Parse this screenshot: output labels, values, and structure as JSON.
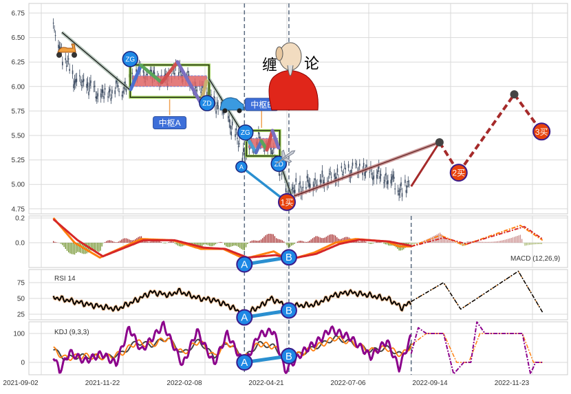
{
  "chart_data": {
    "type": "candlestick-with-indicators",
    "x_tick_labels": [
      "2021-09-02",
      "2021-11-22",
      "2022-02-08",
      "2022-04-21",
      "2022-07-06",
      "2022-09-14",
      "2022-11-23"
    ],
    "price": {
      "y_ticks": [
        "4.75",
        "5.00",
        "5.25",
        "5.50",
        "5.75",
        "6.00",
        "6.25",
        "6.50",
        "6.75"
      ],
      "ylim": [
        4.7,
        6.85
      ],
      "close": [
        [
          "2021-09-14",
          6.6
        ],
        [
          "2021-09-22",
          6.35
        ],
        [
          "2021-09-29",
          6.2
        ],
        [
          "2021-10-06",
          6.05
        ],
        [
          "2021-10-20",
          6.0
        ],
        [
          "2021-10-30",
          5.9
        ],
        [
          "2021-11-09",
          5.95
        ],
        [
          "2021-11-16",
          6.0
        ],
        [
          "2021-11-23",
          5.98
        ],
        [
          "2021-11-29",
          6.1
        ],
        [
          "2021-12-06",
          6.15
        ],
        [
          "2021-12-20",
          6.1
        ],
        [
          "2022-01-02",
          6.05
        ],
        [
          "2022-01-15",
          6.2
        ],
        [
          "2022-01-23",
          6.1
        ],
        [
          "2022-02-02",
          6.0
        ],
        [
          "2022-02-12",
          5.95
        ],
        [
          "2022-02-19",
          5.85
        ],
        [
          "2022-03-05",
          5.7
        ],
        [
          "2022-03-15",
          5.45
        ],
        [
          "2022-03-22",
          5.3
        ],
        [
          "2022-03-28",
          5.4
        ],
        [
          "2022-04-04",
          5.45
        ],
        [
          "2022-04-14",
          5.4
        ],
        [
          "2022-04-25",
          5.2
        ],
        [
          "2022-05-03",
          4.9
        ],
        [
          "2022-05-12",
          4.95
        ],
        [
          "2022-05-25",
          5.0
        ],
        [
          "2022-06-08",
          5.05
        ],
        [
          "2022-06-21",
          5.1
        ],
        [
          "2022-07-05",
          5.15
        ],
        [
          "2022-07-19",
          5.15
        ],
        [
          "2022-08-01",
          5.1
        ],
        [
          "2022-08-15",
          5.05
        ],
        [
          "2022-08-25",
          4.92
        ],
        [
          "2022-09-03",
          5.05
        ]
      ],
      "zhongshu": [
        {
          "label": "中枢A",
          "start": "2021-11-29",
          "end": "2022-02-15",
          "zg": 6.22,
          "zd": 5.89,
          "inner_high": 6.11,
          "inner_low": 6.0
        },
        {
          "label": "中枢B",
          "start": "2022-03-24",
          "end": "2022-04-26",
          "zg": 5.55,
          "zd": 5.29,
          "inner_high": 5.47,
          "inner_low": 5.37
        }
      ],
      "markers": [
        {
          "text": "ZG",
          "date": "2021-11-29",
          "value": 6.28
        },
        {
          "text": "ZD",
          "date": "2022-02-13",
          "value": 5.83
        },
        {
          "text": "ZG",
          "date": "2022-03-23",
          "value": 5.53
        },
        {
          "text": "ZD",
          "date": "2022-04-25",
          "value": 5.21
        },
        {
          "text": "A",
          "date": "2022-03-19",
          "value": 5.18
        }
      ],
      "signals": [
        {
          "text": "1买",
          "date": "2022-05-03",
          "value": 4.82
        },
        {
          "text": "2买",
          "date": "2022-10-20",
          "value": 5.12
        },
        {
          "text": "3买",
          "date": "2023-01-10",
          "value": 5.54
        }
      ],
      "forecast_path": [
        [
          "2022-09-03",
          4.98
        ],
        [
          "2022-10-01",
          5.43
        ],
        [
          "2022-10-20",
          5.12
        ],
        [
          "2022-12-14",
          5.92
        ],
        [
          "2023-01-10",
          5.54
        ]
      ],
      "divider_dates": [
        "2022-03-22",
        "2022-05-05"
      ],
      "logo_text": "缠论"
    },
    "macd": {
      "label": "MACD (12,26,9)",
      "y_ticks": [
        "0.2",
        "0.0"
      ],
      "ylim": [
        -0.2,
        0.22
      ],
      "dif": [
        [
          "2021-09-14",
          0.2
        ],
        [
          "2021-10-05",
          0.0
        ],
        [
          "2021-10-30",
          -0.12
        ],
        [
          "2021-12-10",
          0.03
        ],
        [
          "2022-01-10",
          0.02
        ],
        [
          "2022-02-07",
          -0.05
        ],
        [
          "2022-03-01",
          -0.05
        ],
        [
          "2022-03-22",
          -0.13
        ],
        [
          "2022-04-20",
          -0.07
        ],
        [
          "2022-05-05",
          -0.14
        ],
        [
          "2022-05-30",
          -0.08
        ],
        [
          "2022-06-20",
          0.0
        ],
        [
          "2022-07-10",
          0.03
        ],
        [
          "2022-08-10",
          0.01
        ],
        [
          "2022-08-22",
          -0.03
        ],
        [
          "2022-09-03",
          -0.03
        ]
      ],
      "dea": [
        [
          "2021-09-14",
          0.19
        ],
        [
          "2021-10-08",
          0.02
        ],
        [
          "2021-11-02",
          -0.11
        ],
        [
          "2021-12-12",
          0.02
        ],
        [
          "2022-01-12",
          0.02
        ],
        [
          "2022-02-10",
          -0.04
        ],
        [
          "2022-03-03",
          -0.05
        ],
        [
          "2022-03-25",
          -0.12
        ],
        [
          "2022-04-22",
          -0.1
        ],
        [
          "2022-05-07",
          -0.13
        ],
        [
          "2022-06-01",
          -0.09
        ],
        [
          "2022-06-24",
          -0.01
        ],
        [
          "2022-07-14",
          0.025
        ],
        [
          "2022-08-12",
          0.01
        ],
        [
          "2022-09-03",
          -0.025
        ]
      ],
      "forecast_dif": [
        [
          "2022-09-03",
          -0.03
        ],
        [
          "2022-10-02",
          0.06
        ],
        [
          "2022-10-25",
          -0.02
        ],
        [
          "2022-12-20",
          0.14
        ],
        [
          "2023-01-11",
          0.02
        ]
      ],
      "forecast_dea": [
        [
          "2022-09-03",
          -0.03
        ],
        [
          "2022-10-05",
          0.04
        ],
        [
          "2022-10-28",
          -0.01
        ],
        [
          "2022-12-24",
          0.13
        ],
        [
          "2023-01-11",
          0.03
        ]
      ],
      "divergence": {
        "a": "A",
        "b": "B"
      }
    },
    "rsi": {
      "label": "RSI 14",
      "y_ticks": [
        "25",
        "50",
        "75"
      ],
      "ylim": [
        18,
        95
      ],
      "values": [
        [
          "2021-09-14",
          52
        ],
        [
          "2021-10-20",
          40
        ],
        [
          "2021-11-16",
          33
        ],
        [
          "2021-12-06",
          48
        ],
        [
          "2021-12-20",
          60
        ],
        [
          "2022-01-08",
          55
        ],
        [
          "2022-01-15",
          62
        ],
        [
          "2022-02-05",
          50
        ],
        [
          "2022-02-19",
          48
        ],
        [
          "2022-03-07",
          38
        ],
        [
          "2022-03-22",
          25
        ],
        [
          "2022-04-07",
          38
        ],
        [
          "2022-04-17",
          50
        ],
        [
          "2022-05-04",
          38
        ],
        [
          "2022-05-30",
          40
        ],
        [
          "2022-06-19",
          55
        ],
        [
          "2022-07-03",
          60
        ],
        [
          "2022-07-24",
          55
        ],
        [
          "2022-08-13",
          48
        ],
        [
          "2022-08-25",
          35
        ],
        [
          "2022-09-03",
          45
        ]
      ],
      "forecast": [
        [
          "2022-09-03",
          45
        ],
        [
          "2022-10-05",
          75
        ],
        [
          "2022-10-22",
          33
        ],
        [
          "2022-12-18",
          93
        ],
        [
          "2023-01-11",
          28
        ]
      ],
      "divergence": {
        "a": "A",
        "b": "B"
      }
    },
    "kdj": {
      "label": "KDJ (9,3,3)",
      "y_ticks": [
        "0",
        "100"
      ],
      "ylim": [
        -45,
        145
      ],
      "k": [
        [
          "2021-09-14",
          45
        ],
        [
          "2021-09-25",
          15
        ],
        [
          "2021-10-15",
          22
        ],
        [
          "2021-11-05",
          18
        ],
        [
          "2021-11-20",
          30
        ],
        [
          "2021-12-05",
          70
        ],
        [
          "2021-12-20",
          60
        ],
        [
          "2022-01-05",
          85
        ],
        [
          "2022-01-20",
          30
        ],
        [
          "2022-02-05",
          75
        ],
        [
          "2022-02-20",
          20
        ],
        [
          "2022-03-05",
          70
        ],
        [
          "2022-03-22",
          15
        ],
        [
          "2022-04-05",
          65
        ],
        [
          "2022-04-20",
          55
        ],
        [
          "2022-05-02",
          10
        ],
        [
          "2022-05-20",
          35
        ],
        [
          "2022-06-05",
          60
        ],
        [
          "2022-06-20",
          85
        ],
        [
          "2022-07-05",
          70
        ],
        [
          "2022-07-25",
          40
        ],
        [
          "2022-08-10",
          50
        ],
        [
          "2022-08-25",
          25
        ],
        [
          "2022-09-03",
          60
        ]
      ],
      "j": [
        [
          "2021-09-14",
          25
        ],
        [
          "2021-09-20",
          -30
        ],
        [
          "2021-09-30",
          35
        ],
        [
          "2021-10-15",
          5
        ],
        [
          "2021-11-01",
          30
        ],
        [
          "2021-11-15",
          -5
        ],
        [
          "2021-11-28",
          120
        ],
        [
          "2021-12-10",
          40
        ],
        [
          "2022-01-01",
          130
        ],
        [
          "2022-01-20",
          -10
        ],
        [
          "2022-02-03",
          110
        ],
        [
          "2022-02-20",
          -5
        ],
        [
          "2022-03-05",
          100
        ],
        [
          "2022-03-22",
          -10
        ],
        [
          "2022-04-05",
          95
        ],
        [
          "2022-04-20",
          110
        ],
        [
          "2022-05-01",
          -30
        ],
        [
          "2022-05-20",
          40
        ],
        [
          "2022-06-05",
          80
        ],
        [
          "2022-06-15",
          115
        ],
        [
          "2022-07-05",
          85
        ],
        [
          "2022-07-25",
          20
        ],
        [
          "2022-08-10",
          75
        ],
        [
          "2022-08-22",
          -20
        ],
        [
          "2022-09-03",
          90
        ]
      ],
      "forecast_k": [
        [
          "2022-09-03",
          60
        ],
        [
          "2022-09-18",
          100
        ],
        [
          "2022-10-05",
          100
        ],
        [
          "2022-10-18",
          0
        ],
        [
          "2022-10-30",
          0
        ],
        [
          "2022-11-10",
          100
        ],
        [
          "2022-12-22",
          100
        ],
        [
          "2023-01-02",
          0
        ],
        [
          "2023-01-11",
          0
        ]
      ],
      "forecast_j": [
        [
          "2022-09-03",
          30
        ],
        [
          "2022-09-10",
          120
        ],
        [
          "2022-09-18",
          100
        ],
        [
          "2022-10-05",
          100
        ],
        [
          "2022-10-15",
          -40
        ],
        [
          "2022-10-25",
          0
        ],
        [
          "2022-11-01",
          0
        ],
        [
          "2022-11-07",
          140
        ],
        [
          "2022-11-15",
          100
        ],
        [
          "2022-12-22",
          100
        ],
        [
          "2022-12-30",
          -40
        ],
        [
          "2023-01-04",
          0
        ],
        [
          "2023-01-11",
          0
        ]
      ],
      "divergence": {
        "a": "A",
        "b": "B"
      }
    },
    "colors": {
      "candle": "#3b4a60",
      "dif": "#ff7f0e",
      "dea": "#d62728",
      "hist_pos": "#a52a2a",
      "hist_neg": "#6b8e23",
      "rsi": "#000000",
      "kdj_k": "#ff7f0e",
      "kdj_d": "#444444",
      "kdj_j": "#8b008b",
      "marker": "#1e88e5",
      "signal": "#e8420c",
      "grid": "#d9d9d9",
      "divider": "#5a6b80"
    }
  }
}
